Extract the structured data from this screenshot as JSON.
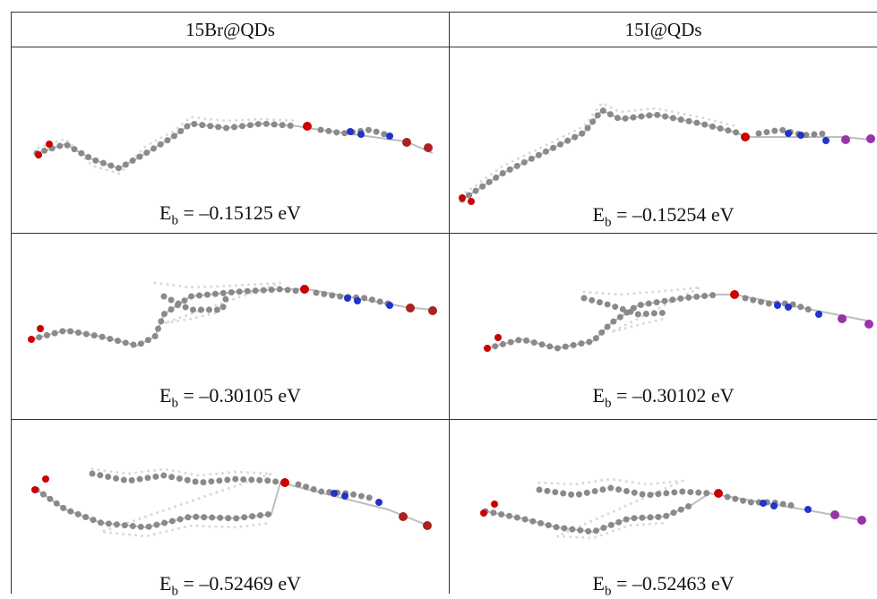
{
  "table": {
    "header": [
      "15Br@QDs",
      "15I@QDs"
    ],
    "rows": [
      [
        {
          "symbol": "E",
          "subscript": "b",
          "value": " = –0.15125 eV"
        },
        {
          "symbol": "E",
          "subscript": "b",
          "value": " = –0.15254 eV"
        }
      ],
      [
        {
          "symbol": "E",
          "subscript": "b",
          "value": " = –0.30105 eV"
        },
        {
          "symbol": "E",
          "subscript": "b",
          "value": " = –0.30102 eV"
        }
      ],
      [
        {
          "symbol": "E",
          "subscript": "b",
          "value": " = –0.52469 eV"
        },
        {
          "symbol": "E",
          "subscript": "b",
          "value": " = –0.52463 eV"
        }
      ]
    ]
  }
}
